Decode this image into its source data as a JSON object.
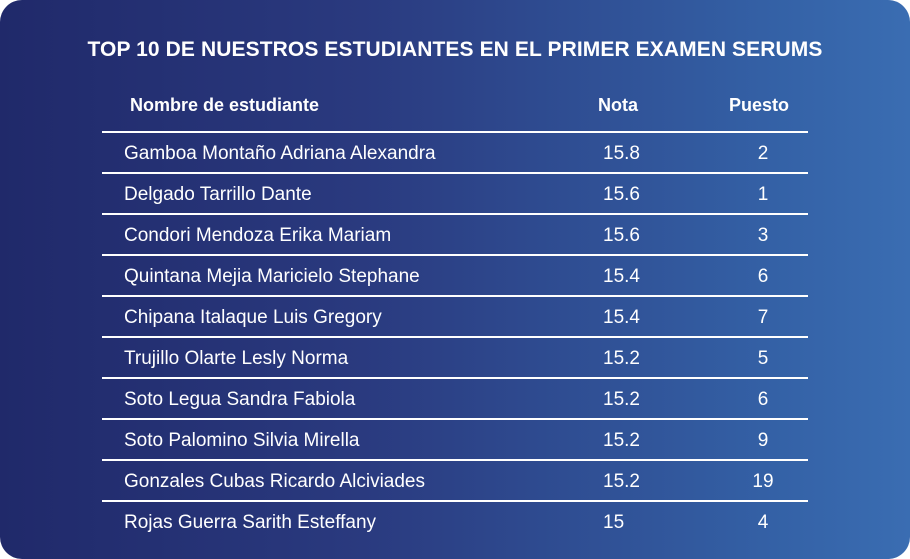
{
  "title": "TOP 10 DE NUESTROS ESTUDIANTES EN EL PRIMER EXAMEN SERUMS",
  "table": {
    "headers": {
      "name": "Nombre de estudiante",
      "nota": "Nota",
      "puesto": "Puesto"
    },
    "rows": [
      {
        "name": "Gamboa Montaño Adriana Alexandra",
        "nota": "15.8",
        "puesto": "2"
      },
      {
        "name": "Delgado Tarrillo Dante",
        "nota": "15.6",
        "puesto": "1"
      },
      {
        "name": "Condori Mendoza Erika Mariam",
        "nota": "15.6",
        "puesto": "3"
      },
      {
        "name": "Quintana Mejia Maricielo Stephane",
        "nota": "15.4",
        "puesto": "6"
      },
      {
        "name": "Chipana Italaque Luis Gregory",
        "nota": "15.4",
        "puesto": "7"
      },
      {
        "name": "Trujillo Olarte Lesly Norma",
        "nota": "15.2",
        "puesto": "5"
      },
      {
        "name": "Soto Legua Sandra Fabiola",
        "nota": "15.2",
        "puesto": "6"
      },
      {
        "name": "Soto Palomino Silvia Mirella",
        "nota": "15.2",
        "puesto": "9"
      },
      {
        "name": "Gonzales Cubas Ricardo Alciviades",
        "nota": "15.2",
        "puesto": "19"
      },
      {
        "name": "Rojas Guerra Sarith Esteffany",
        "nota": "15",
        "puesto": "4"
      }
    ]
  },
  "colors": {
    "gradient_start": "#20296a",
    "gradient_end": "#3a6db2",
    "text": "#ffffff"
  }
}
